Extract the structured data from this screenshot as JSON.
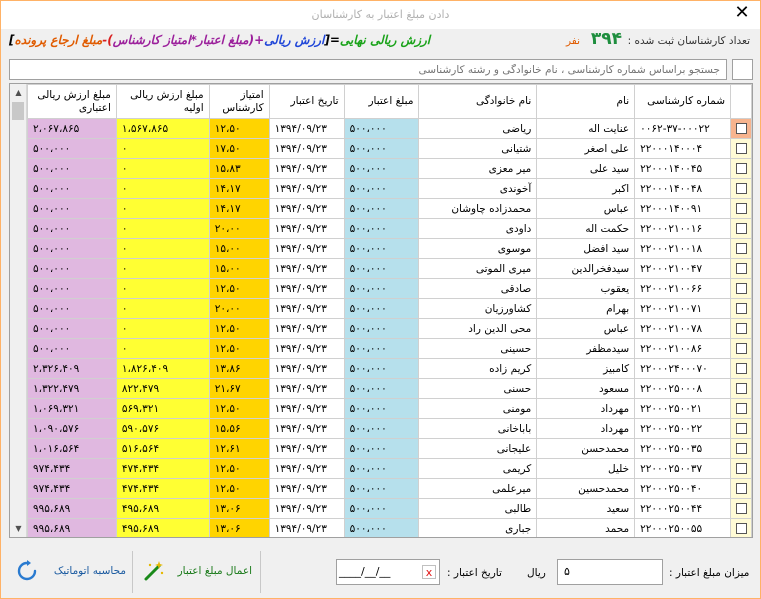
{
  "window": {
    "title": "دادن مبلغ اعتبار به کارشناسان",
    "close": "✕"
  },
  "header": {
    "count_label": "تعداد کارشناسان ثبت شده :",
    "count_value": "۳۹۴",
    "count_unit": "نفر",
    "formula": {
      "p1": "ارزش ریالی نهایی",
      "p2": "=[",
      "p3": "ارزش ریالی",
      "p4": "+(",
      "p5": "مبلغ اعتبار*امتیاز کارشناس",
      "p6": ")-",
      "p7": "مبلغ ارجاع پرونده",
      "p8": "]"
    }
  },
  "search": {
    "placeholder": "جستجو براساس شماره کارشناسی ، نام خانوادگی و رشته کارشناسی"
  },
  "columns": {
    "check": "",
    "number": "شماره کارشناسی",
    "first": "نام",
    "last": "نام خانوادگی",
    "amount": "مبلغ اعتبار",
    "date": "تاریخ اعتبار",
    "score": "امتیاز کارشناس",
    "initial": "مبلغ ارزش ریالی اولیه",
    "final": "مبلغ ارزش ریالی اعتباری"
  },
  "rows": [
    [
      "۰۰۶۲-۳۷-۰۰۰۲۲",
      "عنایت اله",
      "ریاضی",
      "۵۰۰،۰۰۰",
      "۱۳۹۴/۰۹/۲۳",
      "۱۲،۵۰",
      "۱،۵۶۷،۸۶۵",
      "۲،۰۶۷،۸۶۵"
    ],
    [
      "۲۲۰۰۰۱۴۰۰۰۴",
      "علی اصغر",
      "شتیانی",
      "۵۰۰،۰۰۰",
      "۱۳۹۴/۰۹/۲۳",
      "۱۷،۵۰",
      "۰",
      "۵۰۰،۰۰۰"
    ],
    [
      "۲۲۰۰۰۱۴۰۰۴۵",
      "سید علی",
      "میر معزی",
      "۵۰۰،۰۰۰",
      "۱۳۹۴/۰۹/۲۳",
      "۱۵،۸۳",
      "۰",
      "۵۰۰،۰۰۰"
    ],
    [
      "۲۲۰۰۰۱۴۰۰۴۸",
      "اکبر",
      "آخوندی",
      "۵۰۰،۰۰۰",
      "۱۳۹۴/۰۹/۲۳",
      "۱۴،۱۷",
      "۰",
      "۵۰۰،۰۰۰"
    ],
    [
      "۲۲۰۰۰۱۴۰۰۹۱",
      "عباس",
      "محمدزاده چاوشان",
      "۵۰۰،۰۰۰",
      "۱۳۹۴/۰۹/۲۳",
      "۱۴،۱۷",
      "۰",
      "۵۰۰،۰۰۰"
    ],
    [
      "۲۲۰۰۰۲۱۰۰۱۶",
      "حکمت اله",
      "داودی",
      "۵۰۰،۰۰۰",
      "۱۳۹۴/۰۹/۲۳",
      "۲۰،۰۰",
      "۰",
      "۵۰۰،۰۰۰"
    ],
    [
      "۲۲۰۰۰۲۱۰۰۱۸",
      "سید افضل",
      "موسوی",
      "۵۰۰،۰۰۰",
      "۱۳۹۴/۰۹/۲۳",
      "۱۵،۰۰",
      "۰",
      "۵۰۰،۰۰۰"
    ],
    [
      "۲۲۰۰۰۲۱۰۰۴۷",
      "سیدفخرالدین",
      "میری الموتی",
      "۵۰۰،۰۰۰",
      "۱۳۹۴/۰۹/۲۳",
      "۱۵،۰۰",
      "۰",
      "۵۰۰،۰۰۰"
    ],
    [
      "۲۲۰۰۰۲۱۰۰۶۶",
      "یعقوب",
      "صادقی",
      "۵۰۰،۰۰۰",
      "۱۳۹۴/۰۹/۲۳",
      "۱۲،۵۰",
      "۰",
      "۵۰۰،۰۰۰"
    ],
    [
      "۲۲۰۰۰۲۱۰۰۷۱",
      "بهرام",
      "کشاورزیان",
      "۵۰۰،۰۰۰",
      "۱۳۹۴/۰۹/۲۳",
      "۲۰،۰۰",
      "۰",
      "۵۰۰،۰۰۰"
    ],
    [
      "۲۲۰۰۰۲۱۰۰۷۸",
      "عباس",
      "محی الدین راد",
      "۵۰۰،۰۰۰",
      "۱۳۹۴/۰۹/۲۳",
      "۱۲،۵۰",
      "۰",
      "۵۰۰،۰۰۰"
    ],
    [
      "۲۲۰۰۰۲۱۰۰۸۶",
      "سیدمظفر",
      "حسینی",
      "۵۰۰،۰۰۰",
      "۱۳۹۴/۰۹/۲۳",
      "۱۲،۵۰",
      "۰",
      "۵۰۰،۰۰۰"
    ],
    [
      "۲۲۰۰۰۲۴۰۰۰۷۰",
      "کامبیز",
      "کریم زاده",
      "۵۰۰،۰۰۰",
      "۱۳۹۴/۰۹/۲۳",
      "۱۳،۸۶",
      "۱،۸۲۶،۴۰۹",
      "۲،۳۲۶،۴۰۹"
    ],
    [
      "۲۲۰۰۰۲۵۰۰۰۸",
      "مسعود",
      "حسنی",
      "۵۰۰،۰۰۰",
      "۱۳۹۴/۰۹/۲۳",
      "۲۱،۶۷",
      "۸۲۲،۴۷۹",
      "۱،۳۲۲،۴۷۹"
    ],
    [
      "۲۲۰۰۰۲۵۰۰۲۱",
      "مهرداد",
      "مومنی",
      "۵۰۰،۰۰۰",
      "۱۳۹۴/۰۹/۲۳",
      "۱۲،۵۰",
      "۵۶۹،۳۲۱",
      "۱،۰۶۹،۳۲۱"
    ],
    [
      "۲۲۰۰۰۲۵۰۰۲۲",
      "مهرداد",
      "باباخانی",
      "۵۰۰،۰۰۰",
      "۱۳۹۴/۰۹/۲۳",
      "۱۵،۵۶",
      "۵۹۰،۵۷۶",
      "۱،۰۹۰،۵۷۶"
    ],
    [
      "۲۲۰۰۰۲۵۰۰۳۵",
      "محمدحسن",
      "علیجانی",
      "۵۰۰،۰۰۰",
      "۱۳۹۴/۰۹/۲۳",
      "۱۲،۶۱",
      "۵۱۶،۵۶۴",
      "۱،۰۱۶،۵۶۴"
    ],
    [
      "۲۲۰۰۰۲۵۰۰۳۷",
      "خلیل",
      "کریمی",
      "۵۰۰،۰۰۰",
      "۱۳۹۴/۰۹/۲۳",
      "۱۲،۵۰",
      "۴۷۴،۴۳۴",
      "۹۷۴،۴۳۴"
    ],
    [
      "۲۲۰۰۰۲۵۰۰۴۰",
      "محمدحسین",
      "میرعلمی",
      "۵۰۰،۰۰۰",
      "۱۳۹۴/۰۹/۲۳",
      "۱۲،۵۰",
      "۴۷۴،۴۳۴",
      "۹۷۴،۴۳۴"
    ],
    [
      "۲۲۰۰۰۲۵۰۰۴۴",
      "سعید",
      "طالبی",
      "۵۰۰،۰۰۰",
      "۱۳۹۴/۰۹/۲۳",
      "۱۳،۰۶",
      "۴۹۵،۶۸۹",
      "۹۹۵،۶۸۹"
    ],
    [
      "۲۲۰۰۰۲۵۰۰۵۵",
      "محمد",
      "جباری",
      "۵۰۰،۰۰۰",
      "۱۳۹۴/۰۹/۲۳",
      "۱۳،۰۶",
      "۴۹۵،۶۸۹",
      "۹۹۵،۶۸۹"
    ]
  ],
  "bottom": {
    "amount_label": "میزان مبلغ اعتبار :",
    "amount_value": "۵",
    "rial": "ریال",
    "date_label": "تاریخ اعتبار :",
    "date_value": "____/__/__",
    "date_clear": "x",
    "apply_label": "اعمال مبلغ اعتبار",
    "calc_label": "محاسبه اتوماتیک"
  },
  "colors": {
    "chk": "#fffbd5",
    "amount": "#b6e0ec",
    "score": "#ffd400",
    "initial": "#ffff33",
    "final": "#e0b8e0",
    "count": "#1e8e3e"
  }
}
